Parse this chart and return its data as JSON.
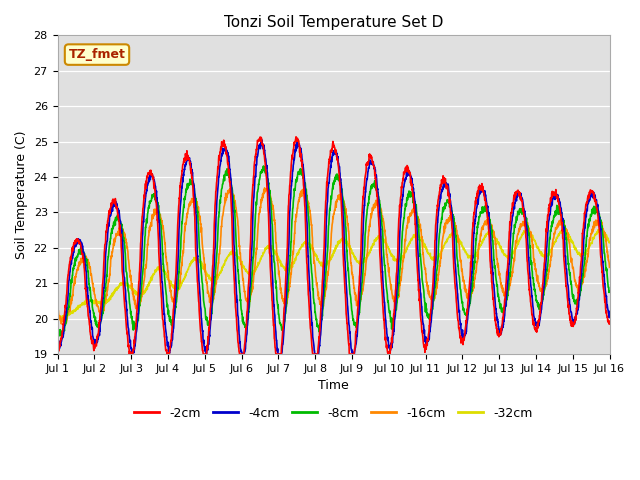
{
  "title": "Tonzi Soil Temperature Set D",
  "xlabel": "Time",
  "ylabel": "Soil Temperature (C)",
  "ylim": [
    19.0,
    28.0
  ],
  "yticks": [
    19.0,
    20.0,
    21.0,
    22.0,
    23.0,
    24.0,
    25.0,
    26.0,
    27.0,
    28.0
  ],
  "xtick_labels": [
    "Jul 1",
    "Jul 2",
    "Jul 3",
    "Jul 4",
    "Jul 5",
    "Jul 6",
    "Jul 7",
    "Jul 8",
    "Jul 9",
    "Jul 10",
    "Jul 11",
    "Jul 12",
    "Jul 13",
    "Jul 14",
    "Jul 15",
    "Jul 16"
  ],
  "legend_labels": [
    "-2cm",
    "-4cm",
    "-8cm",
    "-16cm",
    "-32cm"
  ],
  "legend_colors": [
    "#ff0000",
    "#0000cc",
    "#00bb00",
    "#ff8800",
    "#dddd00"
  ],
  "line_widths": [
    1.2,
    1.2,
    1.2,
    1.2,
    1.2
  ],
  "annotation_text": "TZ_fmet",
  "annotation_bg": "#ffffcc",
  "annotation_border": "#cc8800",
  "plot_bg": "#e0e0e0",
  "fig_bg": "#ffffff",
  "n_days": 15,
  "points_per_day": 144
}
